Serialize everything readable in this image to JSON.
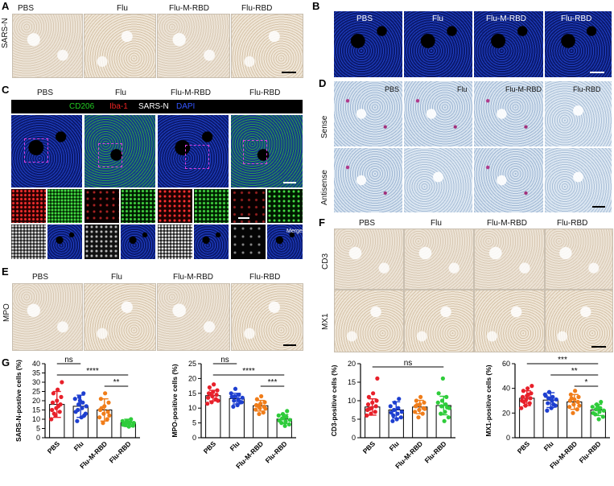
{
  "panels": {
    "A": {
      "letter": "A",
      "conditions": [
        "PBS",
        "Flu",
        "Flu-M-RBD",
        "Flu-RBD"
      ],
      "row_label": "SARS-N"
    },
    "B": {
      "letter": "B",
      "conditions": [
        "PBS",
        "Flu",
        "Flu-M-RBD",
        "Flu-RBD"
      ]
    },
    "C": {
      "letter": "C",
      "conditions": [
        "PBS",
        "Flu",
        "Flu-M-RBD",
        "Flu-RBD"
      ],
      "legend": {
        "cd206": "CD206",
        "iba1": "Iba-1",
        "sarsn": "SARS-N",
        "dapi": "DAPI"
      },
      "merge": "Merge"
    },
    "D": {
      "letter": "D",
      "conditions": [
        "PBS",
        "Flu",
        "Flu-M-RBD",
        "Flu-RBD"
      ],
      "rows": [
        "Sense",
        "Antisense"
      ]
    },
    "E": {
      "letter": "E",
      "conditions": [
        "PBS",
        "Flu",
        "Flu-M-RBD",
        "Flu-RBD"
      ],
      "row_label": "MPO"
    },
    "F": {
      "letter": "F",
      "conditions": [
        "PBS",
        "Flu",
        "Flu-M-RBD",
        "Flu-RBD"
      ],
      "rows": [
        "CD3",
        "MX1"
      ]
    },
    "G": {
      "letter": "G"
    }
  },
  "colors": {
    "PBS": "#e8202a",
    "Flu": "#1e3fd0",
    "Flu-M-RBD": "#f07d1a",
    "Flu-RBD": "#2ecc3a",
    "cd206": "#22cc22",
    "iba1": "#ee2222",
    "sarsn": "#ffffff",
    "dapi": "#3355ff"
  },
  "chart_data": [
    {
      "type": "bar",
      "ylabel": "SARS-N-postive cells (%)",
      "categories": [
        "PBS",
        "Flu",
        "Flu-M-RBD",
        "Flu-RBD"
      ],
      "values": [
        18,
        17,
        15,
        8
      ],
      "errors": [
        7,
        6,
        6,
        2
      ],
      "ylim": [
        0,
        40
      ],
      "yticks": [
        0,
        5,
        10,
        15,
        20,
        25,
        30,
        35,
        40
      ],
      "points": [
        [
          10,
          12,
          14,
          15,
          16,
          18,
          19,
          20,
          22,
          24,
          26,
          30,
          13,
          17
        ],
        [
          9,
          11,
          13,
          15,
          16,
          17,
          18,
          19,
          21,
          22,
          24,
          14,
          20,
          12
        ],
        [
          8,
          10,
          11,
          13,
          14,
          15,
          17,
          19,
          21,
          24,
          12,
          16
        ],
        [
          6,
          6.5,
          7,
          7.5,
          8,
          8,
          8.5,
          9,
          9,
          10,
          7,
          8.2
        ]
      ],
      "significance": [
        {
          "from": 0,
          "to": 1,
          "label": "ns"
        },
        {
          "from": 0,
          "to": 3,
          "label": "****"
        },
        {
          "from": 2,
          "to": 3,
          "label": "**"
        }
      ]
    },
    {
      "type": "bar",
      "ylabel": "MPO-positive cells (%)",
      "categories": [
        "PBS",
        "Flu",
        "Flu-M-RBD",
        "Flu-RBD"
      ],
      "values": [
        14.2,
        13.2,
        10.8,
        6.3
      ],
      "errors": [
        1.8,
        1.8,
        1.8,
        1.5
      ],
      "ylim": [
        0,
        25
      ],
      "yticks": [
        0,
        5,
        10,
        15,
        20,
        25
      ],
      "points": [
        [
          11.5,
          12,
          13,
          13.5,
          14,
          14.5,
          15,
          15.5,
          16,
          17,
          18,
          12.5,
          14.8
        ],
        [
          10.5,
          11,
          12,
          12.5,
          13,
          13.5,
          14,
          14.5,
          15,
          16.5,
          12.2,
          13.8
        ],
        [
          8,
          8.5,
          9.5,
          10,
          10.5,
          11,
          11.5,
          12,
          13,
          14,
          9.8,
          10.8
        ],
        [
          4,
          4.5,
          5,
          5.5,
          6,
          6.5,
          7,
          7.5,
          8,
          9,
          5.8,
          6.8
        ]
      ],
      "significance": [
        {
          "from": 0,
          "to": 1,
          "label": "ns"
        },
        {
          "from": 0,
          "to": 3,
          "label": "****"
        },
        {
          "from": 2,
          "to": 3,
          "label": "***"
        }
      ]
    },
    {
      "type": "bar",
      "ylabel": "CD3-positive cells (%)",
      "categories": [
        "PBS",
        "Flu",
        "Flu-M-RBD",
        "Flu-RBD"
      ],
      "values": [
        8.3,
        7.5,
        8.3,
        8.7
      ],
      "errors": [
        2.2,
        2.2,
        1.8,
        2.5
      ],
      "ylim": [
        0,
        20
      ],
      "yticks": [
        0,
        5,
        10,
        15,
        20
      ],
      "points": [
        [
          6,
          6.5,
          7,
          7.5,
          8,
          8.5,
          9,
          9.5,
          10,
          11,
          12,
          16,
          7.8
        ],
        [
          4.5,
          5,
          5.5,
          6,
          6.5,
          7,
          7.5,
          8,
          8.5,
          9.5,
          10.5,
          6.8
        ],
        [
          5.5,
          6.5,
          7,
          7.5,
          8,
          8.5,
          9,
          9.5,
          10,
          11,
          7.8,
          8.8
        ],
        [
          4.5,
          5.5,
          6.5,
          7,
          8,
          8.5,
          9,
          9.5,
          10,
          11,
          12,
          16,
          8.2
        ]
      ],
      "significance": [
        {
          "from": 0,
          "to": 3,
          "label": "ns"
        }
      ]
    },
    {
      "type": "bar",
      "ylabel": "MX1-positive cells (%)",
      "categories": [
        "PBS",
        "Flu",
        "Flu-M-RBD",
        "Flu-RBD"
      ],
      "values": [
        32,
        30.5,
        29,
        22.5
      ],
      "errors": [
        6,
        6,
        6,
        4.5
      ],
      "ylim": [
        0,
        60
      ],
      "yticks": [
        0,
        20,
        40,
        60
      ],
      "points": [
        [
          24,
          26,
          28,
          30,
          31,
          32,
          33,
          34,
          36,
          38,
          40,
          42,
          29,
          35
        ],
        [
          22,
          24,
          26,
          28,
          30,
          31,
          32,
          33,
          35,
          37,
          27,
          34
        ],
        [
          20,
          23,
          25,
          27,
          29,
          30,
          31,
          33,
          35,
          38,
          26,
          32
        ],
        [
          15,
          17,
          19,
          21,
          22,
          23,
          24,
          25,
          27,
          29,
          20,
          26
        ]
      ],
      "significance": [
        {
          "from": 0,
          "to": 3,
          "label": "***"
        },
        {
          "from": 1,
          "to": 3,
          "label": "**"
        },
        {
          "from": 2,
          "to": 3,
          "label": "*"
        }
      ]
    }
  ]
}
